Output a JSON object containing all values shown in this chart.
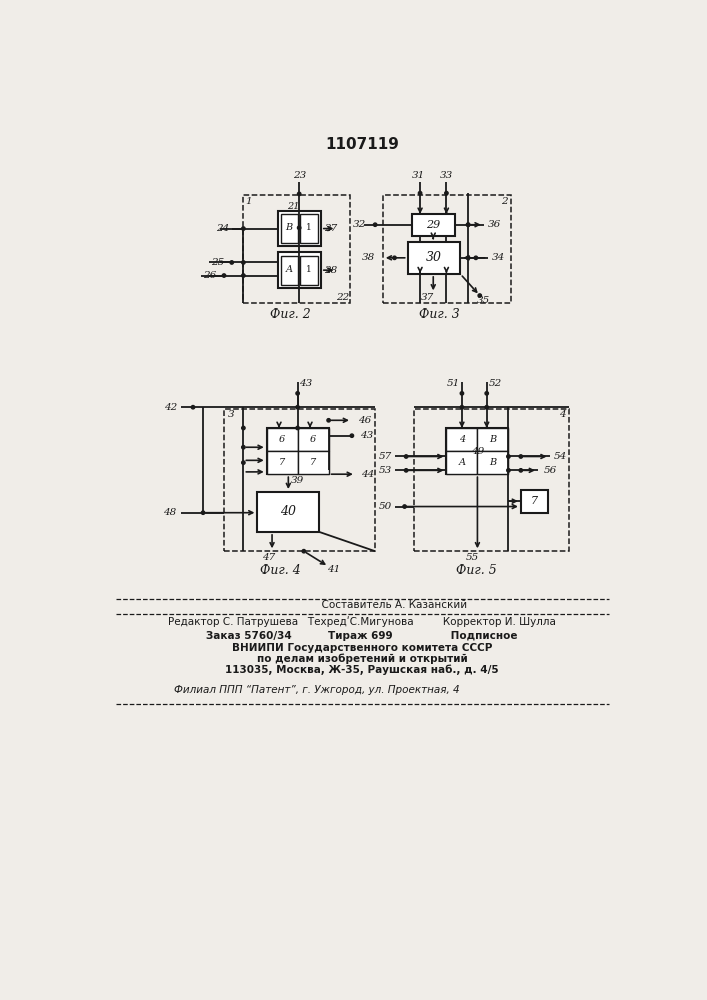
{
  "title": "1107119",
  "bg_color": "#f0ede8",
  "line_color": "#1a1a1a",
  "fig2_label": "Фиг. 2",
  "fig3_label": "Фиг. 3",
  "fig4_label": "Фиг. 4",
  "fig5_label": "Фиг. 5",
  "footer_line0": "  Составитель А. Казанский",
  "footer_line1": "Редактор С. Патрушева   ТехредʹС.Мигунова         Корректор И. Шулла",
  "footer_line2": "Заказ 5760/34          Тираж 699                Подписное",
  "footer_line3": "ВНИИПИ Государственного комитета СССР",
  "footer_line4": "по делам изобретений и открытий",
  "footer_line5": "113035, Москва, Ж-35, Раушская наб., д. 4/5",
  "footer_line6": "Филиал ППП “Патент”, г. Ужгород, ул. Проектная, 4"
}
